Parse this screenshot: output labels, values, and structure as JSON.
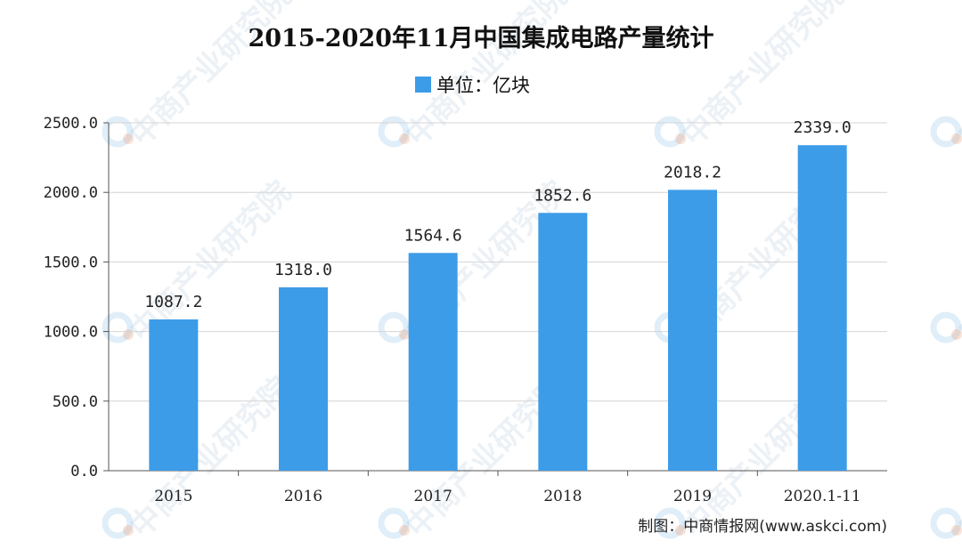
{
  "chart_data": {
    "type": "bar",
    "title": "2015-2020年11月中国集成电路产量统计",
    "legend": "单位：亿块",
    "categories": [
      "2015",
      "2016",
      "2017",
      "2018",
      "2019",
      "2020.1-11"
    ],
    "series": [
      {
        "name": "单位：亿块",
        "values": [
          1087.2,
          1318.0,
          1564.6,
          1852.6,
          2018.2,
          2339.0
        ],
        "labels": [
          "1087.2",
          "1318.0",
          "1564.6",
          "1852.6",
          "2018.2",
          "2339.0"
        ]
      }
    ],
    "ylim": [
      0,
      2500
    ],
    "yticks": [
      0,
      500,
      1000,
      1500,
      2000,
      2500
    ],
    "ytick_labels": [
      "0.0",
      "500.0",
      "1000.0",
      "1500.0",
      "2000.0",
      "2500.0"
    ],
    "grid": true,
    "legend_position": "top-center",
    "bar_color": "#3d9ce8",
    "source": "制图：中商情报网(www.askci.com)",
    "watermark_text": "中商产业研究院"
  }
}
